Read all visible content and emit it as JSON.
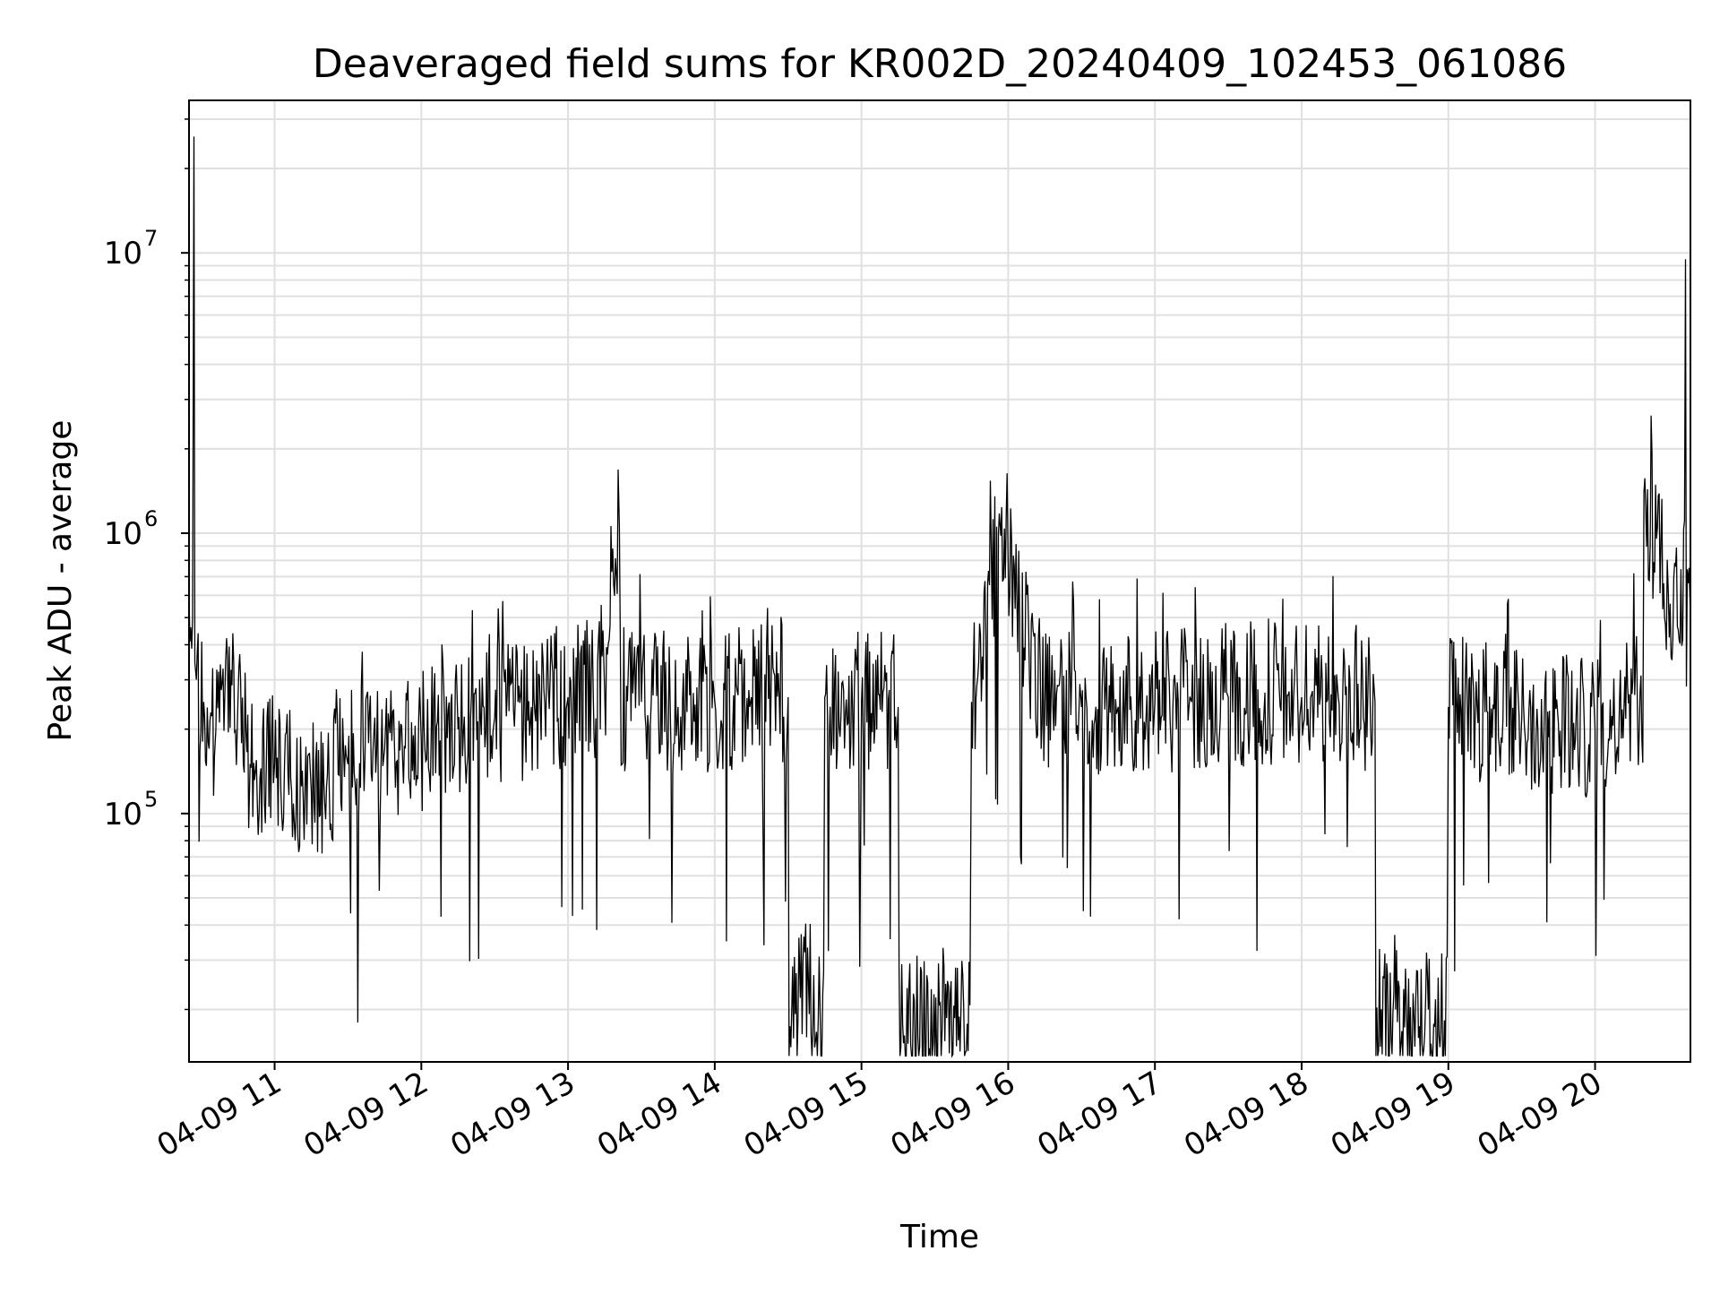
{
  "chart_data": {
    "type": "line",
    "title": "Deaveraged field sums for KR002D_20240409_102453_061086",
    "xlabel": "Time",
    "ylabel": "Peak ADU - average",
    "y_scale": "log",
    "ylim": [
      13000,
      35000000
    ],
    "xlim": [
      "2024-04-09 10:25",
      "2024-04-09 20:39"
    ],
    "x_ticks": [
      {
        "t": "2024-04-09 11:00",
        "label": "04-09 11"
      },
      {
        "t": "2024-04-09 12:00",
        "label": "04-09 12"
      },
      {
        "t": "2024-04-09 13:00",
        "label": "04-09 13"
      },
      {
        "t": "2024-04-09 14:00",
        "label": "04-09 14"
      },
      {
        "t": "2024-04-09 15:00",
        "label": "04-09 15"
      },
      {
        "t": "2024-04-09 16:00",
        "label": "04-09 16"
      },
      {
        "t": "2024-04-09 17:00",
        "label": "04-09 17"
      },
      {
        "t": "2024-04-09 18:00",
        "label": "04-09 18"
      },
      {
        "t": "2024-04-09 19:00",
        "label": "04-09 19"
      },
      {
        "t": "2024-04-09 20:00",
        "label": "04-09 20"
      }
    ],
    "y_ticks": [
      {
        "value": 100000,
        "base": "10",
        "exp": "5"
      },
      {
        "value": 1000000,
        "base": "10",
        "exp": "6"
      },
      {
        "value": 10000000,
        "base": "10",
        "exp": "7"
      }
    ],
    "grid": true,
    "line_color": "#000000",
    "grid_color": "#e0e0e0",
    "series": [
      {
        "x": [
          "2024-04-09 10:25",
          "2024-04-09 10:27",
          "2024-04-09 10:28",
          "2024-04-09 10:31",
          "2024-04-09 10:36",
          "2024-04-09 10:40",
          "2024-04-09 10:45",
          "2024-04-09 10:50",
          "2024-04-09 11:00",
          "2024-04-09 11:15",
          "2024-04-09 11:30",
          "2024-04-09 11:45",
          "2024-04-09 12:00",
          "2024-04-09 12:15",
          "2024-04-09 12:30",
          "2024-04-09 12:45",
          "2024-04-09 13:00",
          "2024-04-09 13:15",
          "2024-04-09 13:21",
          "2024-04-09 13:30",
          "2024-04-09 13:45",
          "2024-04-09 14:00",
          "2024-04-09 14:15",
          "2024-04-09 14:30",
          "2024-04-09 14:35",
          "2024-04-09 14:45",
          "2024-04-09 15:00",
          "2024-04-09 15:15",
          "2024-04-09 15:33",
          "2024-04-09 15:45",
          "2024-04-09 15:57",
          "2024-04-09 16:15",
          "2024-04-09 16:30",
          "2024-04-09 16:45",
          "2024-04-09 17:00",
          "2024-04-09 17:15",
          "2024-04-09 17:30",
          "2024-04-09 17:45",
          "2024-04-09 18:00",
          "2024-04-09 18:15",
          "2024-04-09 18:30",
          "2024-04-09 18:43",
          "2024-04-09 19:00",
          "2024-04-09 19:15",
          "2024-04-09 19:30",
          "2024-04-09 19:45",
          "2024-04-09 20:00",
          "2024-04-09 20:10",
          "2024-04-09 20:20",
          "2024-04-09 20:30",
          "2024-04-09 20:37",
          "2024-04-09 20:39"
        ],
        "y": [
          600000,
          26000000,
          300000,
          250000,
          200000,
          350000,
          250000,
          150000,
          150000,
          120000,
          150000,
          170000,
          180000,
          200000,
          220000,
          240000,
          260000,
          270000,
          1050000,
          250000,
          240000,
          250000,
          260000,
          260000,
          22000,
          260000,
          250000,
          240000,
          17000,
          250000,
          980000,
          250000,
          240000,
          240000,
          250000,
          250000,
          260000,
          270000,
          260000,
          260000,
          250000,
          18000,
          240000,
          230000,
          220000,
          210000,
          200000,
          250000,
          1400000,
          600000,
          9500000,
          500000
        ]
      }
    ]
  }
}
